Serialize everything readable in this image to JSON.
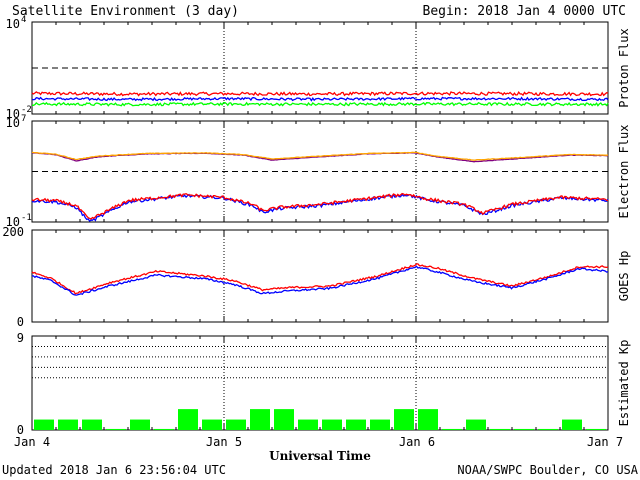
{
  "header": {
    "title": "Satellite Environment (3 day)",
    "begin": "Begin:  2018 Jan 4 0000 UTC"
  },
  "footer": {
    "updated": "Updated 2018 Jan  6 23:56:04 UTC",
    "source": "NOAA/SWPC Boulder, CO USA",
    "xlabel": "Universal Time"
  },
  "xaxis": {
    "labels": [
      "Jan 4",
      "Jan 5",
      "Jan 6",
      "Jan 7"
    ],
    "range_days": [
      0,
      3
    ]
  },
  "colors": {
    "red": "#ff0000",
    "blue": "#0000ff",
    "green": "#00ff00",
    "orange": "#ffa500",
    "purple": "#800080"
  },
  "chart_data": [
    {
      "type": "line",
      "id": "proton",
      "ylabel": "Proton Flux",
      "yscale": "log",
      "ylim": [
        0.01,
        10000
      ],
      "ytick_labels": [
        {
          "base": "10",
          "exp": "4",
          "value": 10000
        },
        {
          "base": "10",
          "exp": "-2",
          "value": 0.01
        }
      ],
      "threshold_lines": [
        10
      ],
      "day_dividers": [
        1,
        2
      ],
      "series": [
        {
          "color": "red",
          "x": [
            0,
            0.5,
            1,
            1.5,
            2,
            2.5,
            3
          ],
          "y": [
            0.22,
            0.2,
            0.21,
            0.2,
            0.22,
            0.21,
            0.2
          ],
          "noise": 0.1
        },
        {
          "color": "blue",
          "x": [
            0,
            0.5,
            1,
            1.5,
            2,
            2.5,
            3
          ],
          "y": [
            0.1,
            0.09,
            0.1,
            0.09,
            0.1,
            0.1,
            0.09
          ],
          "noise": 0.08
        },
        {
          "color": "green",
          "x": [
            0,
            0.5,
            1,
            1.5,
            2,
            2.5,
            3
          ],
          "y": [
            0.045,
            0.042,
            0.045,
            0.043,
            0.045,
            0.044,
            0.043
          ],
          "noise": 0.09
        }
      ]
    },
    {
      "type": "line",
      "id": "electron",
      "ylabel": "Electron Flux",
      "yscale": "log",
      "ylim": [
        0.1,
        10000000
      ],
      "ytick_labels": [
        {
          "base": "10",
          "exp": "7",
          "value": 10000000
        },
        {
          "base": "10",
          "exp": "-1",
          "value": 0.1
        }
      ],
      "threshold_lines": [
        1000
      ],
      "day_dividers": [
        1,
        2
      ],
      "series": [
        {
          "color": "purple",
          "x": [
            0,
            0.12,
            0.23,
            0.35,
            0.6,
            0.9,
            1.1,
            1.25,
            1.45,
            1.75,
            2.0,
            2.1,
            2.3,
            2.55,
            2.8,
            3.0
          ],
          "y": [
            30000,
            22000,
            7000,
            15000,
            25000,
            28000,
            20000,
            8000,
            13000,
            25000,
            30000,
            15000,
            6000,
            11000,
            20000,
            18000
          ],
          "noise": 0.02
        },
        {
          "color": "orange",
          "x": [
            0,
            0.12,
            0.23,
            0.35,
            0.6,
            0.9,
            1.1,
            1.25,
            1.45,
            1.75,
            2.0,
            2.1,
            2.3,
            2.55,
            2.8,
            3.0
          ],
          "y": [
            32000,
            24000,
            9000,
            17000,
            27000,
            30000,
            22000,
            10000,
            15000,
            27000,
            32000,
            17000,
            8000,
            13000,
            22000,
            20000
          ],
          "noise": 0.02
        },
        {
          "color": "blue",
          "x": [
            0,
            0.12,
            0.23,
            0.3,
            0.5,
            0.8,
            1.0,
            1.15,
            1.2,
            1.3,
            1.5,
            1.8,
            1.95,
            2.05,
            2.25,
            2.35,
            2.5,
            2.75,
            3.0
          ],
          "y": [
            5,
            4,
            1.5,
            0.1,
            4,
            12,
            8,
            2,
            0.6,
            1.2,
            2,
            8,
            15,
            6,
            2,
            0.4,
            2,
            8,
            5
          ],
          "noise": 0.12
        },
        {
          "color": "red",
          "x": [
            0,
            0.12,
            0.23,
            0.3,
            0.5,
            0.8,
            1.0,
            1.15,
            1.2,
            1.3,
            1.5,
            1.8,
            1.95,
            2.05,
            2.25,
            2.35,
            2.5,
            2.75,
            3.0
          ],
          "y": [
            6,
            5,
            2,
            0.15,
            5,
            14,
            9,
            2.5,
            0.8,
            1.5,
            2.5,
            9,
            17,
            7,
            2.5,
            0.5,
            2.5,
            9,
            6
          ],
          "noise": 0.12
        }
      ]
    },
    {
      "type": "line",
      "id": "goes-hp",
      "ylabel": "GOES Hp",
      "yscale": "linear",
      "ylim": [
        0,
        200
      ],
      "ytick_labels": [
        {
          "base": "200",
          "value": 200
        },
        {
          "base": "0",
          "value": 0
        }
      ],
      "day_dividers": [
        1,
        2
      ],
      "series": [
        {
          "color": "red",
          "x": [
            0,
            0.1,
            0.23,
            0.4,
            0.65,
            0.9,
            1.05,
            1.2,
            1.35,
            1.55,
            1.8,
            2.0,
            2.1,
            2.3,
            2.5,
            2.7,
            2.85,
            3.0
          ],
          "y": [
            108,
            95,
            62,
            85,
            110,
            100,
            90,
            70,
            75,
            78,
            100,
            125,
            118,
            95,
            78,
            100,
            120,
            120
          ],
          "noise": 2
        },
        {
          "color": "blue",
          "x": [
            0,
            0.1,
            0.23,
            0.4,
            0.65,
            0.9,
            1.05,
            1.2,
            1.35,
            1.55,
            1.8,
            2.0,
            2.1,
            2.3,
            2.5,
            2.7,
            2.85,
            3.0
          ],
          "y": [
            100,
            90,
            58,
            78,
            102,
            94,
            82,
            62,
            68,
            73,
            95,
            120,
            110,
            88,
            74,
            96,
            116,
            110
          ],
          "noise": 2
        }
      ]
    },
    {
      "type": "bar",
      "id": "kp",
      "ylabel": "Estimated Kp",
      "ylim": [
        0,
        9
      ],
      "ytick_labels": [
        {
          "base": "9",
          "value": 9
        },
        {
          "base": "0",
          "value": 0
        }
      ],
      "dotted_lines": [
        5,
        6,
        7,
        8,
        9
      ],
      "day_dividers": [
        1,
        2
      ],
      "bar_width_hours": 3,
      "colors": "green",
      "x_start_hours": [
        0,
        3,
        6,
        9,
        12,
        15,
        18,
        21,
        24,
        27,
        30,
        33,
        36,
        39,
        42,
        45,
        48,
        51,
        54,
        57,
        60,
        63,
        66,
        69
      ],
      "values": [
        1,
        1,
        1,
        0,
        1,
        0,
        2,
        1,
        1,
        2,
        2,
        1,
        1,
        1,
        1,
        2,
        2,
        0,
        1,
        0,
        0,
        0,
        1,
        0
      ]
    }
  ]
}
